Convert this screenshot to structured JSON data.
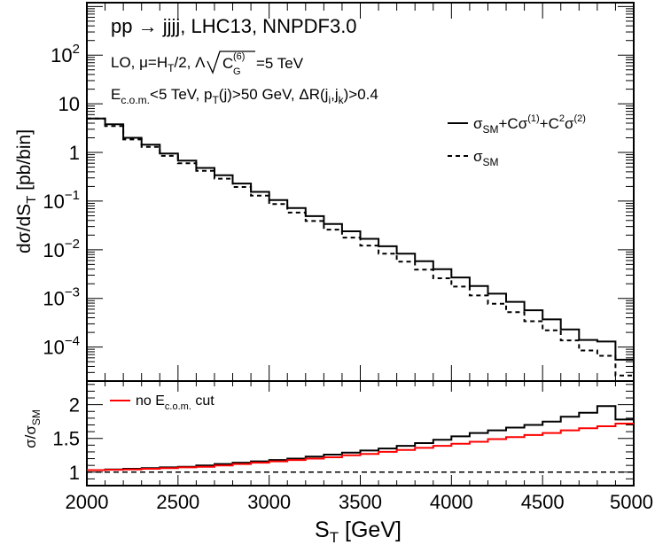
{
  "chart_data": [
    {
      "type": "line",
      "x_edges": [
        2000,
        2100,
        2200,
        2300,
        2400,
        2500,
        2600,
        2700,
        2800,
        2900,
        3000,
        3100,
        3200,
        3300,
        3400,
        3500,
        3600,
        3700,
        3800,
        3900,
        4000,
        4100,
        4200,
        4300,
        4400,
        4500,
        4600,
        4700,
        4800,
        4900,
        5000
      ],
      "series": [
        {
          "name": "σSM+Cσ(1)+C²σ(2)",
          "style": "solid",
          "values": [
            5.0,
            3.8,
            2.0,
            1.45,
            0.95,
            0.68,
            0.48,
            0.34,
            0.23,
            0.155,
            0.105,
            0.072,
            0.049,
            0.034,
            0.024,
            0.0168,
            0.0118,
            0.0083,
            0.0058,
            0.004,
            0.0027,
            0.0018,
            0.00125,
            0.00085,
            0.00057,
            0.00037,
            0.00023,
            0.00014,
            0.00013,
            5.5e-05
          ]
        },
        {
          "name": "σSM",
          "style": "dashed",
          "values": [
            5.0,
            3.5,
            1.85,
            1.3,
            0.85,
            0.6,
            0.42,
            0.29,
            0.195,
            0.13,
            0.087,
            0.058,
            0.039,
            0.026,
            0.0178,
            0.0122,
            0.0083,
            0.0057,
            0.0039,
            0.0026,
            0.00175,
            0.00115,
            0.00078,
            0.00052,
            0.00034,
            0.00022,
            0.000137,
            8.5e-05,
            6.6e-05,
            2.6e-05
          ]
        }
      ],
      "ylabel_parts": {
        "a": "dσ/dS",
        "sub": "T",
        "b": " [pb/bin]"
      },
      "scale": "log",
      "ylim": [
        2e-05,
        1200
      ],
      "xlim": [
        2000,
        5000
      ],
      "y_ticks": [
        {
          "value": 100,
          "label": "10",
          "exp": "2"
        },
        {
          "value": 10,
          "label": "10",
          "exp": ""
        },
        {
          "value": 1,
          "label": "1",
          "exp": ""
        },
        {
          "value": 0.1,
          "label": "10",
          "exp": "−1"
        },
        {
          "value": 0.01,
          "label": "10",
          "exp": "−2"
        },
        {
          "value": 0.001,
          "label": "10",
          "exp": "−3"
        },
        {
          "value": 0.0001,
          "label": "10",
          "exp": "−4"
        }
      ],
      "annotations": {
        "line1": "pp → jjjj, LHC13, NNPDF3.0",
        "line2a": "LO, μ=H",
        "line2b": "T",
        "line2c": "/2, Λ",
        "line2d": "C",
        "line2e": "(6)",
        "line2f": "G",
        "line2g": "=5 TeV",
        "line3a": "E",
        "line3b": "c.o.m.",
        "line3c": "<5 TeV, p",
        "line3d": "T",
        "line3e": "(j)>50 GeV, ΔR(j",
        "line3f": "i",
        "line3g": ",j",
        "line3h": "k",
        "line3i": ")>0.4"
      },
      "legend": {
        "placement": "right",
        "entry1": {
          "a": "σ",
          "b": "SM",
          "c": "+Cσ",
          "d": "(1)",
          "e": "+C",
          "f": "2",
          "g": "σ",
          "h": "(2)"
        },
        "entry2": {
          "a": "σ",
          "b": "SM"
        }
      }
    },
    {
      "type": "line",
      "x_edges": [
        2000,
        2100,
        2200,
        2300,
        2400,
        2500,
        2600,
        2700,
        2800,
        2900,
        3000,
        3100,
        3200,
        3300,
        3400,
        3500,
        3600,
        3700,
        3800,
        3900,
        4000,
        4100,
        4200,
        4300,
        4400,
        4500,
        4600,
        4700,
        4800,
        4900,
        5000
      ],
      "series": [
        {
          "name": "",
          "color": "#000000",
          "values": [
            1.03,
            1.04,
            1.05,
            1.06,
            1.07,
            1.08,
            1.1,
            1.12,
            1.14,
            1.16,
            1.18,
            1.2,
            1.23,
            1.26,
            1.29,
            1.32,
            1.35,
            1.39,
            1.43,
            1.48,
            1.53,
            1.58,
            1.62,
            1.66,
            1.7,
            1.75,
            1.82,
            1.88,
            1.98,
            1.78
          ]
        },
        {
          "name": "no E c.o.m. cut",
          "color": "#ff0000",
          "values": [
            1.03,
            1.035,
            1.04,
            1.05,
            1.06,
            1.07,
            1.08,
            1.1,
            1.12,
            1.14,
            1.16,
            1.18,
            1.2,
            1.22,
            1.25,
            1.27,
            1.3,
            1.33,
            1.36,
            1.39,
            1.42,
            1.45,
            1.49,
            1.52,
            1.55,
            1.58,
            1.62,
            1.65,
            1.68,
            1.72
          ]
        }
      ],
      "reference_line": 1,
      "ylim": [
        0.8,
        2.35
      ],
      "y_ticks": [
        {
          "value": 1,
          "label": "1"
        },
        {
          "value": 1.5,
          "label": "1.5"
        },
        {
          "value": 2,
          "label": "2"
        }
      ],
      "x_ticks": [
        2000,
        2500,
        3000,
        3500,
        4000,
        4500,
        5000
      ],
      "ylabel_parts": {
        "a": "σ/σ",
        "sub": "SM"
      },
      "xlabel_parts": {
        "a": "S",
        "sub": "T",
        "b": " [GeV]"
      },
      "legend": {
        "placement": "top-left",
        "a": "no E",
        "b": "c.o.m.",
        "c": " cut"
      }
    }
  ]
}
